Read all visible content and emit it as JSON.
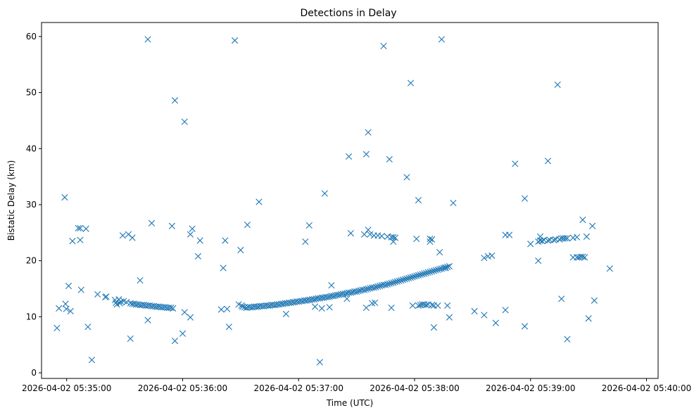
{
  "chart_data": {
    "type": "scatter",
    "title": "Detections in Delay",
    "xlabel": "Time (UTC)",
    "ylabel": "Bistatic Delay (km)",
    "marker": "x",
    "color": "#1f77b4",
    "x_unit": "seconds after 2026-04-02 05:35:00",
    "xlim": [
      -13,
      306
    ],
    "ylim": [
      -1,
      62.5
    ],
    "xticks": [
      {
        "value": 0,
        "label": "2026-04-02 05:35:00"
      },
      {
        "value": 60,
        "label": "2026-04-02 05:36:00"
      },
      {
        "value": 120,
        "label": "2026-04-02 05:37:00"
      },
      {
        "value": 180,
        "label": "2026-04-02 05:38:00"
      },
      {
        "value": 240,
        "label": "2026-04-02 05:39:00"
      },
      {
        "value": 300,
        "label": "2026-04-02 05:40:00"
      }
    ],
    "yticks": [
      {
        "value": 0,
        "label": "0"
      },
      {
        "value": 10,
        "label": "10"
      },
      {
        "value": 20,
        "label": "20"
      },
      {
        "value": 30,
        "label": "30"
      },
      {
        "value": 40,
        "label": "40"
      },
      {
        "value": 50,
        "label": "50"
      },
      {
        "value": 60,
        "label": "60"
      }
    ],
    "series": [
      {
        "name": "detections",
        "points": [
          [
            -5,
            8
          ],
          [
            -4,
            11.5
          ],
          [
            -1,
            31.3
          ],
          [
            -0.6,
            12.3
          ],
          [
            -0.2,
            11.4
          ],
          [
            1,
            15.5
          ],
          [
            2,
            11
          ],
          [
            3,
            23.5
          ],
          [
            6,
            25.8
          ],
          [
            7,
            25.8
          ],
          [
            7,
            23.7
          ],
          [
            7.5,
            14.8
          ],
          [
            10,
            25.7
          ],
          [
            11,
            8.2
          ],
          [
            13,
            2.3
          ],
          [
            16,
            14
          ],
          [
            20,
            13.5
          ],
          [
            20.5,
            13.6
          ],
          [
            25,
            13
          ],
          [
            25.5,
            12.5
          ],
          [
            26,
            12.2
          ],
          [
            27,
            13.1
          ],
          [
            27.5,
            12.4
          ],
          [
            28,
            12.7
          ],
          [
            29,
            24.5
          ],
          [
            29.5,
            12.8
          ],
          [
            31,
            12.6
          ],
          [
            32,
            24.7
          ],
          [
            33,
            12.4
          ],
          [
            33,
            6.1
          ],
          [
            34,
            24.1
          ],
          [
            34,
            12.3
          ],
          [
            35,
            12.3
          ],
          [
            36,
            12.2
          ],
          [
            37,
            12.2
          ],
          [
            38,
            16.5
          ],
          [
            38,
            12.1
          ],
          [
            39,
            12.1
          ],
          [
            40,
            12.1
          ],
          [
            41,
            12
          ],
          [
            42,
            9.4
          ],
          [
            42,
            12
          ],
          [
            42,
            59.5
          ],
          [
            43,
            12
          ],
          [
            44,
            26.7
          ],
          [
            44,
            11.9
          ],
          [
            45,
            11.9
          ],
          [
            46,
            11.8
          ],
          [
            47,
            11.8
          ],
          [
            48,
            11.8
          ],
          [
            49,
            11.7
          ],
          [
            50,
            11.7
          ],
          [
            51,
            11.7
          ],
          [
            52,
            11.6
          ],
          [
            53,
            11.6
          ],
          [
            54,
            11.6
          ],
          [
            54.5,
            26.2
          ],
          [
            55,
            11.5
          ],
          [
            56,
            48.6
          ],
          [
            56,
            5.7
          ],
          [
            60,
            7
          ],
          [
            61,
            10.8
          ],
          [
            61,
            44.8
          ],
          [
            64,
            9.9
          ],
          [
            64,
            24.7
          ],
          [
            65,
            25.7
          ],
          [
            68,
            20.8
          ],
          [
            69,
            23.6
          ],
          [
            80,
            11.3
          ],
          [
            81,
            18.7
          ],
          [
            82,
            23.6
          ],
          [
            83,
            11.4
          ],
          [
            84,
            8.2
          ],
          [
            87,
            59.3
          ],
          [
            89,
            12.2
          ],
          [
            90,
            21.9
          ],
          [
            90.5,
            12
          ],
          [
            91,
            11.8
          ],
          [
            92,
            11.7
          ],
          [
            93,
            11.6
          ],
          [
            93.5,
            26.4
          ],
          [
            94,
            11.7
          ],
          [
            95,
            11.7
          ],
          [
            96,
            11.7
          ],
          [
            97,
            11.8
          ],
          [
            98,
            11.8
          ],
          [
            99,
            11.8
          ],
          [
            99.5,
            30.5
          ],
          [
            100,
            11.9
          ],
          [
            101,
            11.9
          ],
          [
            102,
            11.9
          ],
          [
            103,
            12
          ],
          [
            104,
            12
          ],
          [
            105,
            12
          ],
          [
            106,
            12.1
          ],
          [
            107,
            12.1
          ],
          [
            108,
            12.1
          ],
          [
            109,
            12.2
          ],
          [
            110,
            12.2
          ],
          [
            111,
            12.3
          ],
          [
            112,
            12.3
          ],
          [
            113,
            12.4
          ],
          [
            113.5,
            10.5
          ],
          [
            114,
            12.4
          ],
          [
            115,
            12.5
          ],
          [
            116,
            12.5
          ],
          [
            117,
            12.6
          ],
          [
            118,
            12.6
          ],
          [
            119,
            12.7
          ],
          [
            120,
            12.7
          ],
          [
            121,
            12.8
          ],
          [
            122,
            12.8
          ],
          [
            123,
            12.9
          ],
          [
            123.5,
            23.4
          ],
          [
            124,
            12.9
          ],
          [
            125,
            13
          ],
          [
            125.5,
            26.3
          ],
          [
            126,
            13
          ],
          [
            127,
            13.1
          ],
          [
            128,
            13.1
          ],
          [
            128.5,
            11.8
          ],
          [
            129,
            13.2
          ],
          [
            130,
            13.3
          ],
          [
            131,
            13.3
          ],
          [
            131,
            1.9
          ],
          [
            132,
            13.4
          ],
          [
            132,
            11.5
          ],
          [
            133,
            13.4
          ],
          [
            133.5,
            32
          ],
          [
            134,
            13.5
          ],
          [
            135,
            13.5
          ],
          [
            136,
            13.6
          ],
          [
            136,
            11.7
          ],
          [
            137,
            13.7
          ],
          [
            138,
            13.7
          ],
          [
            139,
            13.8
          ],
          [
            140,
            13.9
          ],
          [
            141,
            13.9
          ],
          [
            142,
            14
          ],
          [
            143,
            14.1
          ],
          [
            144,
            14.1
          ],
          [
            145,
            14.2
          ],
          [
            146,
            14.3
          ],
          [
            147,
            14.3
          ],
          [
            148,
            14.4
          ],
          [
            149,
            14.5
          ],
          [
            150,
            14.5
          ],
          [
            151,
            14.6
          ],
          [
            152,
            14.7
          ],
          [
            153,
            14.8
          ],
          [
            154,
            14.8
          ],
          [
            155,
            14.9
          ],
          [
            156,
            15
          ],
          [
            157,
            15.1
          ],
          [
            158,
            15.2
          ],
          [
            159,
            15.2
          ],
          [
            160,
            15.3
          ],
          [
            161,
            15.4
          ],
          [
            162,
            15.5
          ],
          [
            163,
            15.6
          ],
          [
            164,
            15.7
          ],
          [
            165,
            15.7
          ],
          [
            166,
            15.8
          ],
          [
            167,
            15.9
          ],
          [
            168,
            16
          ],
          [
            169,
            16.1
          ],
          [
            170,
            16.2
          ],
          [
            171,
            16.3
          ],
          [
            172,
            16.4
          ],
          [
            173,
            16.5
          ],
          [
            174,
            16.6
          ],
          [
            175,
            16.7
          ],
          [
            176,
            16.8
          ],
          [
            177,
            16.9
          ],
          [
            178,
            17
          ],
          [
            179,
            17.1
          ],
          [
            180,
            17.2
          ],
          [
            181,
            17.3
          ],
          [
            182,
            17.4
          ],
          [
            183,
            17.5
          ],
          [
            184,
            17.6
          ],
          [
            185,
            17.7
          ],
          [
            186,
            17.8
          ],
          [
            187,
            17.9
          ],
          [
            188,
            18
          ],
          [
            189,
            18.1
          ],
          [
            190,
            18.2
          ],
          [
            191,
            18.3
          ],
          [
            192,
            18.4
          ],
          [
            193,
            18.5
          ],
          [
            194,
            18.6
          ],
          [
            195,
            18.7
          ],
          [
            196,
            18.8
          ],
          [
            197,
            18.9
          ],
          [
            198,
            19
          ],
          [
            137,
            15.6
          ],
          [
            145,
            13.2
          ],
          [
            146,
            38.6
          ],
          [
            147,
            24.9
          ],
          [
            154,
            24.7
          ],
          [
            155,
            39
          ],
          [
            155,
            11.6
          ],
          [
            156,
            25.5
          ],
          [
            156,
            42.9
          ],
          [
            157,
            24.7
          ],
          [
            158,
            12.4
          ],
          [
            159,
            24.5
          ],
          [
            159.5,
            12.5
          ],
          [
            161,
            24.5
          ],
          [
            163,
            24.4
          ],
          [
            164,
            58.3
          ],
          [
            166,
            24.3
          ],
          [
            167,
            38.1
          ],
          [
            168,
            24.2
          ],
          [
            168,
            11.6
          ],
          [
            169,
            24.2
          ],
          [
            169,
            23.4
          ],
          [
            170,
            24.1
          ],
          [
            176,
            34.9
          ],
          [
            178,
            51.7
          ],
          [
            179,
            12
          ],
          [
            181,
            23.9
          ],
          [
            182,
            12
          ],
          [
            182,
            30.8
          ],
          [
            183,
            12.1
          ],
          [
            184,
            12.2
          ],
          [
            185,
            12.2
          ],
          [
            186,
            12.1
          ],
          [
            187,
            12.2
          ],
          [
            188,
            23.9
          ],
          [
            188,
            23.4
          ],
          [
            189,
            12.1
          ],
          [
            189,
            23.8
          ],
          [
            190,
            12
          ],
          [
            190,
            8.1
          ],
          [
            192,
            12
          ],
          [
            193,
            21.5
          ],
          [
            194,
            59.5
          ],
          [
            196,
            18.7
          ],
          [
            197,
            12
          ],
          [
            198,
            9.9
          ],
          [
            200,
            30.3
          ],
          [
            211,
            11
          ],
          [
            216,
            20.5
          ],
          [
            216,
            10.3
          ],
          [
            218,
            20.8
          ],
          [
            220,
            20.9
          ],
          [
            222,
            8.9
          ],
          [
            227,
            11.2
          ],
          [
            227,
            24.6
          ],
          [
            229,
            24.6
          ],
          [
            232,
            37.3
          ],
          [
            237,
            31.1
          ],
          [
            237,
            8.3
          ],
          [
            240,
            23
          ],
          [
            244,
            20
          ],
          [
            244,
            23.4
          ],
          [
            245,
            23.6
          ],
          [
            245,
            24.3
          ],
          [
            246,
            23.5
          ],
          [
            247,
            23.7
          ],
          [
            249,
            37.8
          ],
          [
            249,
            23.6
          ],
          [
            250,
            23.7
          ],
          [
            252,
            23.7
          ],
          [
            253,
            23.8
          ],
          [
            254,
            51.4
          ],
          [
            255,
            23.8
          ],
          [
            256,
            24
          ],
          [
            256,
            13.2
          ],
          [
            257,
            24
          ],
          [
            258,
            24
          ],
          [
            259,
            24
          ],
          [
            259,
            6
          ],
          [
            262,
            24.1
          ],
          [
            262,
            20.6
          ],
          [
            264,
            24.2
          ],
          [
            264,
            20.6
          ],
          [
            265,
            20.6
          ],
          [
            266,
            20.7
          ],
          [
            267,
            27.3
          ],
          [
            267,
            20.7
          ],
          [
            268,
            20.6
          ],
          [
            269,
            24.3
          ],
          [
            270,
            9.7
          ],
          [
            272,
            26.2
          ],
          [
            273,
            12.9
          ],
          [
            281,
            18.6
          ]
        ]
      }
    ]
  }
}
